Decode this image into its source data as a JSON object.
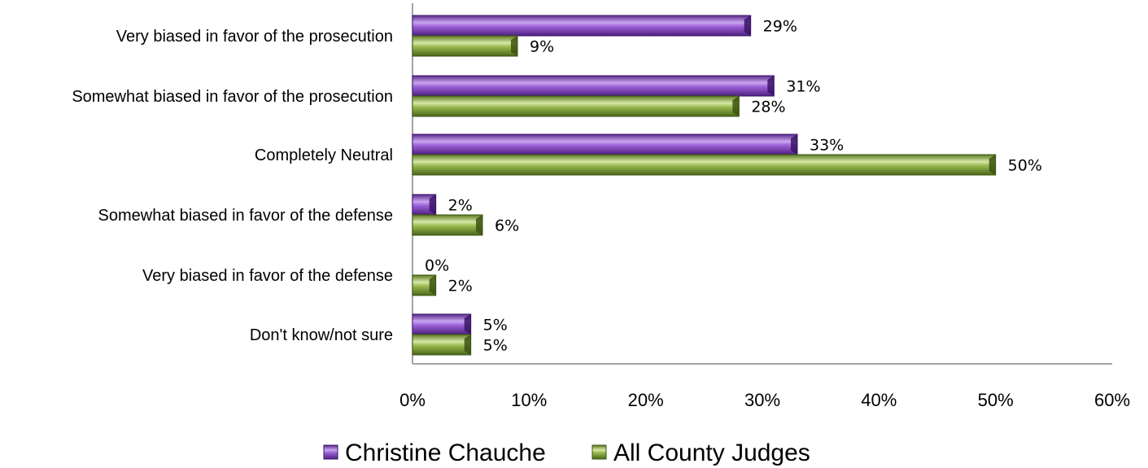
{
  "chart_data": {
    "type": "bar",
    "orientation": "horizontal",
    "categories": [
      "Very biased in favor of the prosecution",
      "Somewhat biased in favor of the prosecution",
      "Completely Neutral",
      "Somewhat biased in favor of the defense",
      "Very biased in favor of the defense",
      "Don't know/not sure"
    ],
    "series": [
      {
        "name": "Christine Chauche",
        "values": [
          29,
          31,
          33,
          2,
          0,
          5
        ],
        "labels": [
          "29%",
          "31%",
          "33%",
          "2%",
          "0%",
          "5%"
        ],
        "color": "#7B3FB3"
      },
      {
        "name": "All County Judges",
        "values": [
          9,
          28,
          50,
          6,
          2,
          5
        ],
        "labels": [
          "9%",
          "28%",
          "50%",
          "6%",
          "2%",
          "5%"
        ],
        "color": "#7A9A3A"
      }
    ],
    "xlim": [
      0,
      60
    ],
    "xticks": [
      0,
      10,
      20,
      30,
      40,
      50,
      60
    ],
    "xtick_labels": [
      "0%",
      "10%",
      "20%",
      "30%",
      "40%",
      "50%",
      "60%"
    ],
    "grid": false,
    "legend_position": "bottom",
    "title": "",
    "xlabel": "",
    "ylabel": ""
  }
}
